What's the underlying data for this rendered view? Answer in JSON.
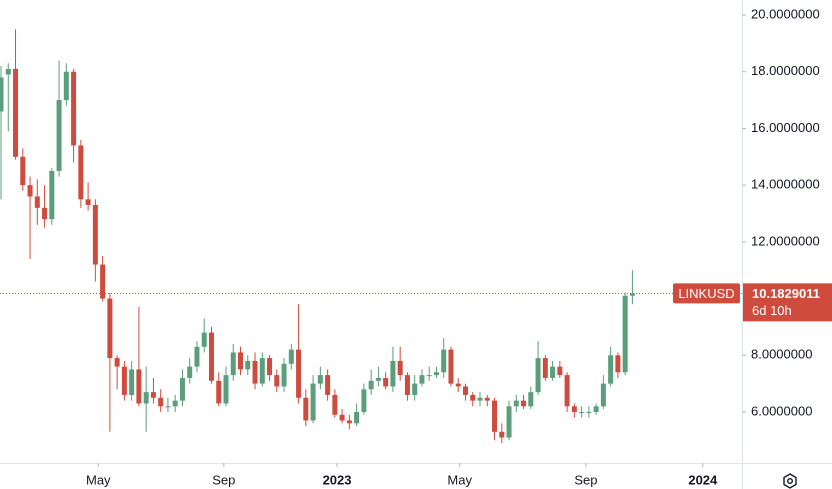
{
  "chart_data": {
    "type": "candlestick",
    "symbol": "LINKUSD",
    "last_price": 10.1829011,
    "countdown": "6d 10h",
    "up_color": "#5a9e7c",
    "down_color": "#cf4b3d",
    "series": {
      "open": [
        16.6,
        17.9,
        18.1,
        15.0,
        14.0,
        13.6,
        13.2,
        12.8,
        14.5,
        17.0,
        18.0,
        15.4,
        13.5,
        13.3,
        11.2,
        10.0,
        7.9,
        7.6,
        6.6,
        7.5,
        6.3,
        6.7,
        6.5,
        6.2,
        6.2,
        6.4,
        7.2,
        7.6,
        8.3,
        8.8,
        7.1,
        6.3,
        7.3,
        8.1,
        7.5,
        7.8,
        7.0,
        7.9,
        7.3,
        6.9,
        7.7,
        8.2,
        6.5,
        5.7,
        7.0,
        7.3,
        6.6,
        5.9,
        5.7,
        5.6,
        6.0,
        6.8,
        7.1,
        7.2,
        6.9,
        7.8,
        7.3,
        6.6,
        7.0,
        7.3,
        7.3,
        7.4,
        8.2,
        7.0,
        6.9,
        6.6,
        6.4,
        6.5,
        6.4,
        5.3,
        5.1,
        6.2,
        6.4,
        6.2,
        6.7,
        7.9,
        7.2,
        7.6,
        7.3,
        6.2,
        6.0,
        6.0,
        6.0,
        6.2,
        7.0,
        8.0,
        7.4,
        10.1
      ],
      "high": [
        18.2,
        18.3,
        19.5,
        15.3,
        14.3,
        14.2,
        14.0,
        14.6,
        18.4,
        18.3,
        18.1,
        15.6,
        14.1,
        13.5,
        11.5,
        10.2,
        8.0,
        7.8,
        7.8,
        9.7,
        7.6,
        7.2,
        6.8,
        6.5,
        6.6,
        7.5,
        7.9,
        8.5,
        9.3,
        9.0,
        7.4,
        7.6,
        8.4,
        8.3,
        8.0,
        8.1,
        8.1,
        8.0,
        7.5,
        7.9,
        8.4,
        9.8,
        6.8,
        7.3,
        7.6,
        7.5,
        6.8,
        6.1,
        5.9,
        6.3,
        7.0,
        7.5,
        7.6,
        7.4,
        8.3,
        8.3,
        7.4,
        7.3,
        7.5,
        7.6,
        7.6,
        8.6,
        8.3,
        7.2,
        7.0,
        6.7,
        6.7,
        6.6,
        6.5,
        5.6,
        6.4,
        6.6,
        6.6,
        6.9,
        8.5,
        8.0,
        7.8,
        7.8,
        7.4,
        6.3,
        6.2,
        6.2,
        6.3,
        7.3,
        8.3,
        8.1,
        10.2,
        11.0
      ],
      "low": [
        13.5,
        15.9,
        14.9,
        13.8,
        11.4,
        12.6,
        12.5,
        12.6,
        14.3,
        16.8,
        14.8,
        13.2,
        13.1,
        10.6,
        9.9,
        5.3,
        6.8,
        6.4,
        6.4,
        6.2,
        5.3,
        6.3,
        6.0,
        6.0,
        6.0,
        6.2,
        7.0,
        7.4,
        8.1,
        7.0,
        6.2,
        6.2,
        7.1,
        7.3,
        7.3,
        6.8,
        6.9,
        7.1,
        6.7,
        6.7,
        7.5,
        6.3,
        5.5,
        5.6,
        6.8,
        6.4,
        5.8,
        5.6,
        5.4,
        5.5,
        5.9,
        6.6,
        6.9,
        6.8,
        6.7,
        7.1,
        6.4,
        6.4,
        6.9,
        7.1,
        7.2,
        7.2,
        6.9,
        6.7,
        6.4,
        6.2,
        6.2,
        6.2,
        5.0,
        4.9,
        5.0,
        6.0,
        6.1,
        6.1,
        6.6,
        7.1,
        7.1,
        7.2,
        6.0,
        5.8,
        5.8,
        5.8,
        5.9,
        6.1,
        6.9,
        7.2,
        7.3,
        9.8
      ],
      "close": [
        17.8,
        18.1,
        15.0,
        14.0,
        13.6,
        13.2,
        12.8,
        14.5,
        17.0,
        18.0,
        15.4,
        13.5,
        13.3,
        11.2,
        10.0,
        7.9,
        7.6,
        6.6,
        7.5,
        6.3,
        6.7,
        6.5,
        6.2,
        6.2,
        6.4,
        7.2,
        7.6,
        8.3,
        8.8,
        7.1,
        6.3,
        7.3,
        8.1,
        7.5,
        7.8,
        7.0,
        7.9,
        7.3,
        6.9,
        7.7,
        8.2,
        6.5,
        5.7,
        7.0,
        7.3,
        6.6,
        5.9,
        5.7,
        5.6,
        6.0,
        6.8,
        7.1,
        7.2,
        6.9,
        7.8,
        7.3,
        6.6,
        7.0,
        7.3,
        7.3,
        7.4,
        8.2,
        7.0,
        6.9,
        6.6,
        6.4,
        6.5,
        6.4,
        5.3,
        5.1,
        6.2,
        6.4,
        6.2,
        6.7,
        7.9,
        7.2,
        7.6,
        7.3,
        6.2,
        6.0,
        6.0,
        6.0,
        6.2,
        7.0,
        8.0,
        7.4,
        10.1,
        10.1829011
      ]
    },
    "xlim": [
      -0.14,
      102.1
    ],
    "xticks": [
      {
        "value": 13.4,
        "label": "May"
      },
      {
        "value": 30.7,
        "label": "Sep"
      },
      {
        "value": 46.3,
        "label": "2023"
      },
      {
        "value": 63.2,
        "label": "May"
      },
      {
        "value": 80.6,
        "label": "Sep"
      },
      {
        "value": 96.7,
        "label": "2024"
      }
    ],
    "ylim": [
      4.2,
      20.53
    ],
    "yticks": [
      {
        "value": 6,
        "label": "6.0000000"
      },
      {
        "value": 8,
        "label": "8.0000000"
      },
      {
        "value": 10,
        "label": "10.0000000"
      },
      {
        "value": 12,
        "label": "12.0000000"
      },
      {
        "value": 14,
        "label": "14.0000000"
      },
      {
        "value": 16,
        "label": "16.0000000"
      },
      {
        "value": 18,
        "label": "18.0000000"
      },
      {
        "value": 20,
        "label": "20.0000000"
      }
    ]
  }
}
